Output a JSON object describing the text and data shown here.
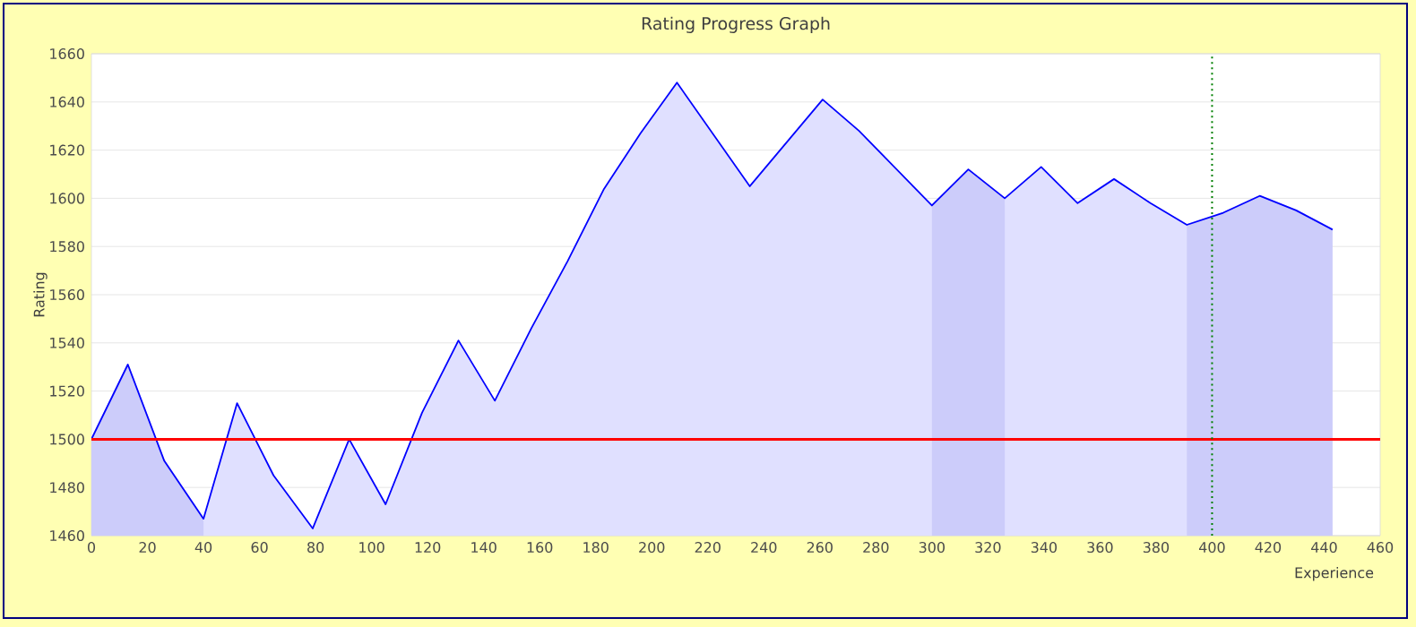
{
  "chart_data": {
    "type": "area",
    "title": "Rating Progress Graph",
    "xlabel": "Experience",
    "ylabel": "Rating",
    "xlim": [
      0,
      460
    ],
    "xticks": [
      0,
      20,
      40,
      60,
      80,
      100,
      120,
      140,
      160,
      180,
      200,
      220,
      240,
      260,
      280,
      300,
      320,
      340,
      360,
      380,
      400,
      420,
      440,
      460
    ],
    "ylim": [
      1460,
      1660
    ],
    "yticks": [
      1460,
      1480,
      1500,
      1520,
      1540,
      1560,
      1580,
      1600,
      1620,
      1640,
      1660
    ],
    "grid": "y",
    "series": [
      {
        "color": "#0000ff",
        "x": [
          0,
          13,
          26,
          40,
          52,
          65,
          79,
          92,
          105,
          118,
          131,
          144,
          157,
          170,
          183,
          196,
          209,
          235,
          261,
          274,
          300,
          313,
          326,
          339,
          352,
          365,
          378,
          391,
          404,
          417,
          430,
          443
        ],
        "values": [
          1500,
          1531,
          1491,
          1467,
          1515,
          1485,
          1463,
          1500,
          1473,
          1511,
          1541,
          1516,
          1546,
          1574,
          1604,
          1627,
          1648,
          1605,
          1641,
          1628,
          1597,
          1612,
          1600,
          1613,
          1598,
          1608,
          1598,
          1589,
          1594,
          1601,
          1595,
          1587
        ]
      },
      {
        "color": "#ccccfa",
        "x": [
          0,
          13,
          26,
          40
        ],
        "values": [
          1500,
          1531,
          1491,
          1467
        ]
      },
      {
        "color": "#ccccfa",
        "x": [
          300,
          313,
          326
        ],
        "values": [
          1597,
          1612,
          1600
        ]
      },
      {
        "color": "#ccccfa",
        "x": [
          391,
          404,
          417,
          430,
          443
        ],
        "values": [
          1589,
          1594,
          1601,
          1595,
          1587
        ]
      }
    ],
    "ref_lines": [
      {
        "axis": "y",
        "value": 1500,
        "color": "#ff0000",
        "line_style": "solid"
      },
      {
        "axis": "x",
        "value": 400,
        "color": "#008000",
        "line_style": "dotted"
      }
    ]
  }
}
